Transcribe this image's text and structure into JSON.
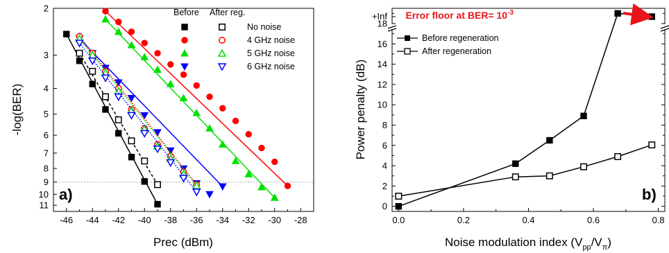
{
  "chart_data": [
    {
      "type": "scatter",
      "xlabel": "Prec (dBm)",
      "ylabel": "-log(BER)",
      "panel_label": "a)",
      "x_ticks": [
        "-46",
        "-44",
        "-42",
        "-40",
        "-38",
        "-36",
        "-34",
        "-32",
        "-30",
        "-28"
      ],
      "y_ticks": [
        "2",
        "3",
        "4",
        "5",
        "6",
        "7",
        "8",
        "9",
        "10",
        "11"
      ],
      "y_scale": "log(-log(BER))",
      "xlim": [
        -47,
        -27
      ],
      "ylim": [
        2,
        11.6
      ],
      "reference_line_y": 9,
      "legend": {
        "position": "top-right",
        "header_before": "Before",
        "header_after": "After reg.",
        "entries": [
          "No noise",
          "4 GHz noise",
          "5 GHz noise",
          "6 GHz noise"
        ]
      },
      "series": [
        {
          "name": "No noise",
          "group": "before",
          "marker": "square-filled",
          "color": "#000000",
          "line": "solid",
          "x": [
            -46,
            -45,
            -44,
            -43,
            -42,
            -41,
            -40,
            -39
          ],
          "y": [
            2.5,
            3.15,
            3.85,
            4.8,
            5.9,
            7.25,
            8.95,
            10.9
          ]
        },
        {
          "name": "4 GHz noise",
          "group": "before",
          "marker": "circle-filled",
          "color": "#ff0000",
          "line": "solid",
          "x": [
            -43,
            -42,
            -41,
            -40,
            -39,
            -38,
            -37,
            -36,
            -35,
            -34,
            -33,
            -32,
            -31,
            -30,
            -29
          ],
          "y": [
            2.05,
            2.25,
            2.45,
            2.7,
            2.95,
            3.25,
            3.55,
            3.9,
            4.3,
            4.75,
            5.3,
            5.95,
            6.7,
            7.55,
            9.3
          ]
        },
        {
          "name": "5 GHz noise",
          "group": "before",
          "marker": "triangle-up-filled",
          "color": "#00e000",
          "line": "solid",
          "x": [
            -43,
            -42,
            -41,
            -40,
            -39,
            -38,
            -37,
            -36,
            -35,
            -34,
            -33,
            -32,
            -31,
            -30
          ],
          "y": [
            2.2,
            2.45,
            2.75,
            3.05,
            3.4,
            3.85,
            4.35,
            4.95,
            5.65,
            6.5,
            7.5,
            8.4,
            9.4,
            10.3
          ]
        },
        {
          "name": "6 GHz noise",
          "group": "before",
          "marker": "triangle-down-filled",
          "color": "#0000ff",
          "line": "solid",
          "x": [
            -45,
            -44,
            -43,
            -42,
            -41,
            -40,
            -39,
            -38,
            -37,
            -36,
            -35,
            -34
          ],
          "y": [
            2.6,
            2.95,
            3.35,
            3.8,
            4.35,
            5.05,
            5.85,
            6.85,
            8.0,
            9.1,
            10.0,
            9.35
          ]
        },
        {
          "name": "No noise",
          "group": "after",
          "marker": "square-open",
          "color": "#000000",
          "line": "dashed",
          "x": [
            -45,
            -44,
            -43,
            -42,
            -41,
            -40,
            -39
          ],
          "y": [
            2.95,
            3.45,
            4.3,
            5.25,
            6.3,
            7.5,
            9.2
          ]
        },
        {
          "name": "4 GHz noise",
          "group": "after",
          "marker": "circle-open",
          "color": "#ff0000",
          "line": "dotted",
          "x": [
            -45,
            -44,
            -43,
            -42,
            -41,
            -40,
            -39,
            -38,
            -37,
            -36
          ],
          "y": [
            2.55,
            2.95,
            3.45,
            4.0,
            4.8,
            5.65,
            6.5,
            7.2,
            8.25,
            9.2
          ]
        },
        {
          "name": "5 GHz noise",
          "group": "after",
          "marker": "triangle-up-open",
          "color": "#00e000",
          "line": "dotted",
          "x": [
            -45,
            -44,
            -43,
            -42,
            -41,
            -40,
            -39,
            -38,
            -37,
            -36
          ],
          "y": [
            2.6,
            3.0,
            3.5,
            4.1,
            4.85,
            5.7,
            6.6,
            7.35,
            8.4,
            9.3
          ]
        },
        {
          "name": "6 GHz noise",
          "group": "after",
          "marker": "triangle-down-open",
          "color": "#0000ff",
          "line": "dotted",
          "x": [
            -45,
            -44,
            -43,
            -42,
            -41,
            -40,
            -39,
            -38,
            -37,
            -36
          ],
          "y": [
            2.7,
            3.15,
            3.65,
            4.3,
            5.05,
            5.9,
            6.75,
            7.6,
            8.7,
            9.8
          ]
        }
      ]
    },
    {
      "type": "line",
      "xlabel": "Noise modulation index (V",
      "xlabel_sub1": "pp",
      "xlabel_mid": "/V",
      "xlabel_sub2": "π",
      "xlabel_end": ")",
      "ylabel": "Power penalty (dB)",
      "panel_label": "b)",
      "x_ticks": [
        "0.0",
        "0.2",
        "0.4",
        "0.6",
        "0.8"
      ],
      "y_ticks": [
        "0",
        "2",
        "4",
        "6",
        "8",
        "10",
        "12",
        "14",
        "16",
        "18"
      ],
      "y_inf_label": "+Inf",
      "xlim": [
        -0.02,
        0.82
      ],
      "ylim": [
        -0.5,
        19.5
      ],
      "annotation": {
        "text_main": "Error floor at BER= 10",
        "text_sup": "-3"
      },
      "legend": {
        "position": "top-left"
      },
      "series": [
        {
          "name": "Before regeneration",
          "marker": "square-filled",
          "color": "#000000",
          "x": [
            0.0,
            0.36,
            0.465,
            0.57,
            0.675,
            0.78
          ],
          "y": [
            0.0,
            4.2,
            6.5,
            8.9,
            19.0,
            "+Inf"
          ]
        },
        {
          "name": "After regeneration",
          "marker": "square-open",
          "color": "#000000",
          "x": [
            0.0,
            0.36,
            0.465,
            0.57,
            0.675,
            0.78
          ],
          "y": [
            1.0,
            2.9,
            3.0,
            3.9,
            4.9,
            6.05
          ]
        }
      ]
    }
  ]
}
